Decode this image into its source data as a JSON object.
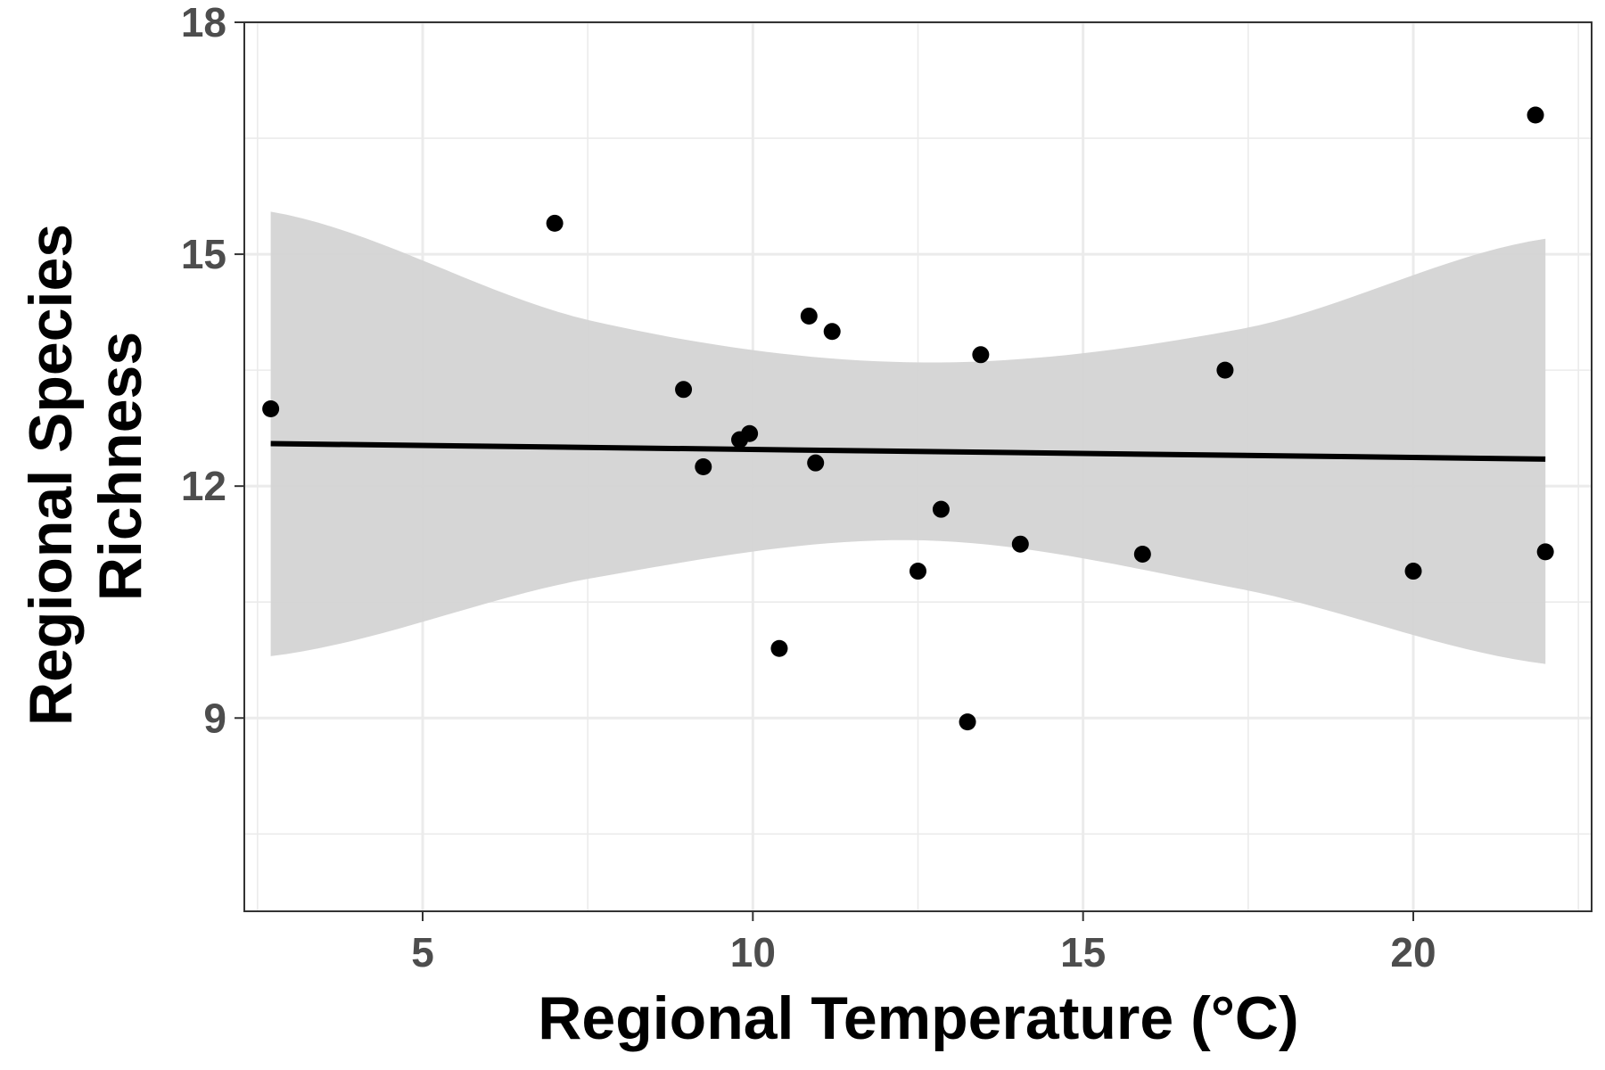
{
  "chart_data": {
    "type": "scatter",
    "xlabel": "Regional Temperature (°C)",
    "ylabel": [
      "Regional Species",
      "Richness"
    ],
    "xlim": [
      2.3,
      22.7
    ],
    "ylim": [
      6.5,
      18
    ],
    "x_ticks": [
      5,
      10,
      15,
      20
    ],
    "x_minor_ticks": [
      2.5,
      7.5,
      12.5,
      17.5,
      22.5
    ],
    "y_ticks": [
      9,
      12,
      15,
      18
    ],
    "y_minor_ticks": [
      7.5,
      10.5,
      13.5,
      16.5
    ],
    "x_tick_labels": [
      "5",
      "10",
      "15",
      "20"
    ],
    "y_tick_labels": [
      "9",
      "12",
      "15",
      "18"
    ],
    "grid": true,
    "colors": {
      "points": "#000000",
      "fit_line": "#000000",
      "ribbon": "#d4d4d4",
      "grid": "#ebebeb",
      "axis_text": "#4d4d4d"
    },
    "series": [
      {
        "type": "scatter",
        "points": [
          {
            "x": 2.7,
            "y": 13.0
          },
          {
            "x": 7.0,
            "y": 15.4
          },
          {
            "x": 8.95,
            "y": 13.25
          },
          {
            "x": 9.25,
            "y": 12.25
          },
          {
            "x": 9.8,
            "y": 12.6
          },
          {
            "x": 9.95,
            "y": 12.68
          },
          {
            "x": 10.4,
            "y": 9.9
          },
          {
            "x": 10.85,
            "y": 14.2
          },
          {
            "x": 10.95,
            "y": 12.3
          },
          {
            "x": 11.2,
            "y": 14.0
          },
          {
            "x": 12.5,
            "y": 10.9
          },
          {
            "x": 12.85,
            "y": 11.7
          },
          {
            "x": 13.25,
            "y": 8.95
          },
          {
            "x": 13.45,
            "y": 13.7
          },
          {
            "x": 14.05,
            "y": 11.25
          },
          {
            "x": 15.9,
            "y": 11.12
          },
          {
            "x": 17.15,
            "y": 13.5
          },
          {
            "x": 20.0,
            "y": 10.9
          },
          {
            "x": 21.85,
            "y": 16.8
          },
          {
            "x": 22.0,
            "y": 11.15
          }
        ]
      },
      {
        "type": "line",
        "x": [
          2.7,
          22.0
        ],
        "y": [
          12.55,
          12.35
        ]
      },
      {
        "type": "ribbon",
        "x": [
          2.7,
          7.5,
          12.5,
          17.5,
          22.0
        ],
        "lower": [
          9.8,
          10.8,
          11.3,
          10.65,
          9.7
        ],
        "upper": [
          15.55,
          14.15,
          13.6,
          14.05,
          15.2
        ]
      }
    ]
  }
}
